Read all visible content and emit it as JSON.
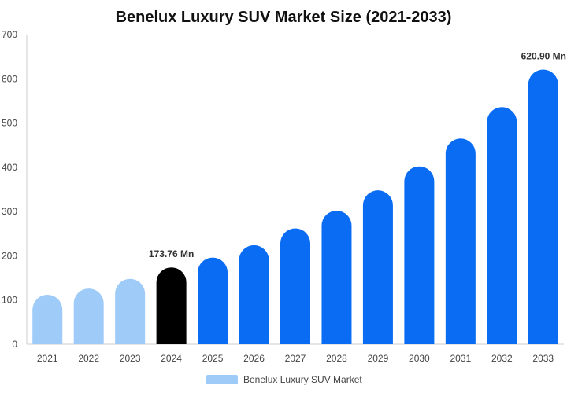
{
  "chart_data": {
    "type": "bar",
    "title": "Benelux Luxury SUV Market Size (2021-2033)",
    "xlabel": "",
    "ylabel": "",
    "categories": [
      "2021",
      "2022",
      "2023",
      "2024",
      "2025",
      "2026",
      "2027",
      "2028",
      "2029",
      "2030",
      "2031",
      "2032",
      "2033"
    ],
    "series": [
      {
        "name": "Benelux Luxury SUV Market",
        "values": [
          112,
          126,
          148,
          173.76,
          196,
          224,
          262,
          302,
          348,
          402,
          465,
          536,
          620.9
        ]
      }
    ],
    "ylim": [
      0,
      700
    ],
    "yticks": [
      0,
      100,
      200,
      300,
      400,
      500,
      600,
      700
    ],
    "grid": false,
    "legend_position": "bottom-center",
    "bar_colors": [
      "#9ecbf7",
      "#9ecbf7",
      "#9ecbf7",
      "#000000",
      "#0a6cf2",
      "#0a6cf2",
      "#0a6cf2",
      "#0a6cf2",
      "#0a6cf2",
      "#0a6cf2",
      "#0a6cf2",
      "#0a6cf2",
      "#0a6cf2"
    ],
    "legend_color": "#9ecbf7",
    "axis_color": "#cccccc",
    "data_labels": [
      {
        "category": "2024",
        "text": "173.76 Mn"
      },
      {
        "category": "2033",
        "text": "620.90 Mn"
      }
    ]
  }
}
